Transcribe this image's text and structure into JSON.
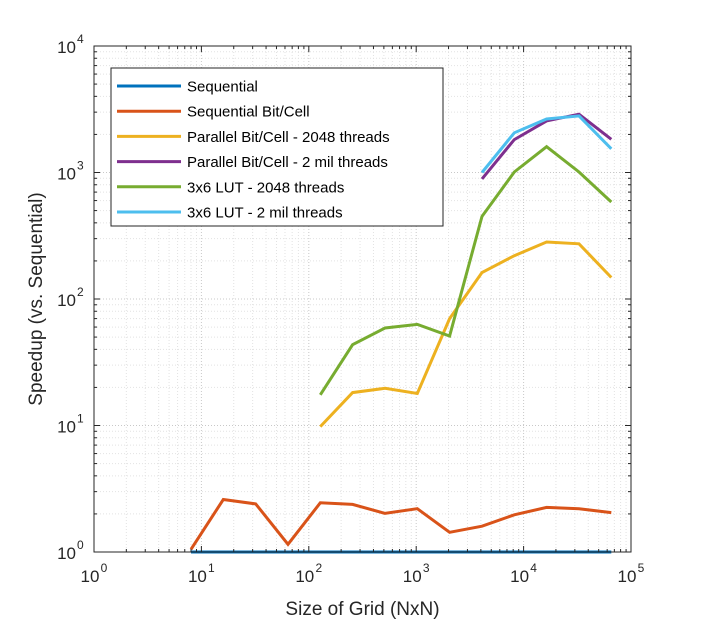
{
  "chart_data": {
    "type": "line",
    "title": "",
    "xlabel": "Size of Grid (NxN)",
    "ylabel": "Speedup (vs. Sequential)",
    "xscale": "log",
    "yscale": "log",
    "xlim": [
      1,
      100000
    ],
    "ylim": [
      1,
      10000
    ],
    "x_ticks": [
      {
        "base": "10",
        "exp": "0"
      },
      {
        "base": "10",
        "exp": "1"
      },
      {
        "base": "10",
        "exp": "2"
      },
      {
        "base": "10",
        "exp": "3"
      },
      {
        "base": "10",
        "exp": "4"
      },
      {
        "base": "10",
        "exp": "5"
      }
    ],
    "y_ticks": [
      {
        "base": "10",
        "exp": "0"
      },
      {
        "base": "10",
        "exp": "1"
      },
      {
        "base": "10",
        "exp": "2"
      },
      {
        "base": "10",
        "exp": "3"
      },
      {
        "base": "10",
        "exp": "4"
      }
    ],
    "grid": "major and minor, dotted",
    "legend_position": "top-left",
    "series": [
      {
        "name": "Sequential",
        "color": "#0072BD",
        "x": [
          8,
          16,
          32,
          64,
          128,
          256,
          512,
          1024,
          2048,
          4096,
          8192,
          16384,
          32768,
          65536
        ],
        "y": [
          1,
          1,
          1,
          1,
          1,
          1,
          1,
          1,
          1,
          1,
          1,
          1,
          1,
          1
        ]
      },
      {
        "name": "Sequential Bit/Cell",
        "color": "#D95319",
        "x": [
          8,
          16,
          32,
          64,
          128,
          256,
          512,
          1024,
          2048,
          4096,
          8192,
          16384,
          32768,
          65536
        ],
        "y": [
          1.05,
          2.6,
          2.4,
          1.15,
          2.45,
          2.38,
          2.02,
          2.2,
          1.43,
          1.6,
          1.97,
          2.25,
          2.2,
          2.05
        ]
      },
      {
        "name": "Parallel Bit/Cell - 2048 threads",
        "color": "#EDB120",
        "x": [
          128,
          256,
          512,
          1024,
          2048,
          4096,
          8192,
          16384,
          32768,
          65536
        ],
        "y": [
          9.8,
          18.2,
          19.7,
          17.9,
          70,
          162,
          220,
          282,
          273,
          148
        ]
      },
      {
        "name": "Parallel Bit/Cell - 2 mil threads",
        "color": "#7E2F8E",
        "x": [
          4096,
          8192,
          16384,
          32768,
          65536
        ],
        "y": [
          890,
          1820,
          2560,
          2890,
          1830
        ]
      },
      {
        "name": "3x6 LUT - 2048 threads",
        "color": "#77AC30",
        "x": [
          128,
          256,
          512,
          1024,
          2048,
          4096,
          8192,
          16384,
          32768,
          65536
        ],
        "y": [
          17.5,
          43.5,
          59,
          63,
          51,
          450,
          1010,
          1600,
          1010,
          585
        ]
      },
      {
        "name": "3x6 LUT - 2 mil threads",
        "color": "#4DBEEE",
        "x": [
          4096,
          8192,
          16384,
          32768,
          65536
        ],
        "y": [
          1000,
          2060,
          2650,
          2800,
          1540
        ]
      }
    ]
  }
}
